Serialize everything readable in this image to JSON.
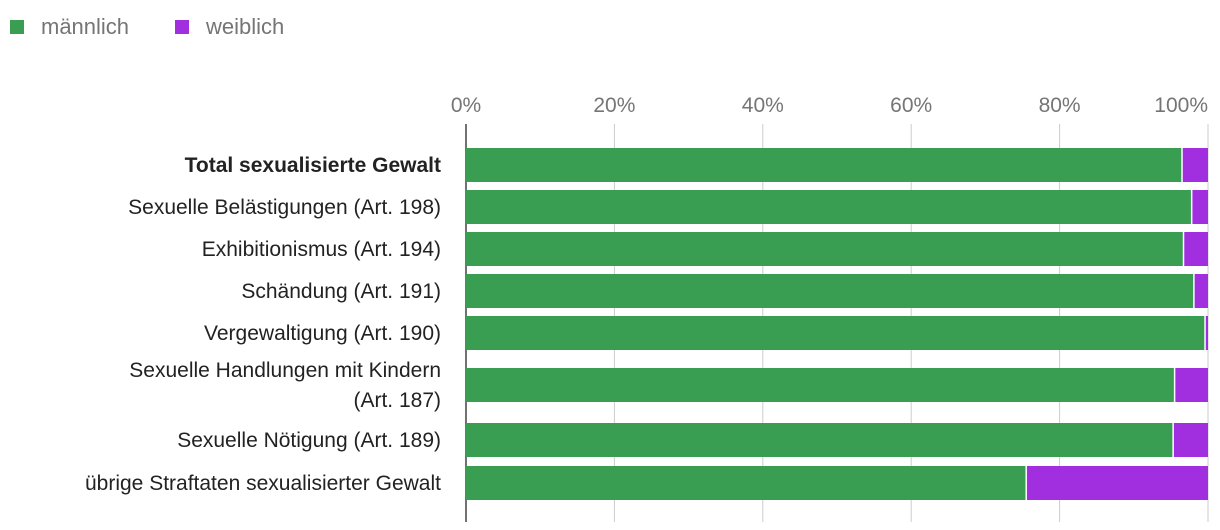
{
  "chart_data": {
    "type": "bar",
    "orientation": "horizontal",
    "stacked": true,
    "percent_stacked": true,
    "title": "",
    "xlabel": "",
    "ylabel": "",
    "xlim": [
      0,
      100
    ],
    "x_ticks": [
      0,
      20,
      40,
      60,
      80,
      100
    ],
    "x_tick_labels": [
      "0%",
      "20%",
      "40%",
      "60%",
      "80%",
      "100%"
    ],
    "grid": true,
    "legend_position": "top-left",
    "categories": [
      "Total sexualisierte Gewalt",
      "Sexuelle Belästigungen (Art. 198)",
      "Exhibitionismus (Art. 194)",
      "Schändung (Art. 191)",
      "Vergewaltigung (Art. 190)",
      "Sexuelle Handlungen mit Kindern (Art. 187)",
      "Sexuelle Nötigung (Art. 189)",
      "übrige Straftaten sexualisierter Gewalt"
    ],
    "category_lines": [
      [
        "Total sexualisierte Gewalt"
      ],
      [
        "Sexuelle Belästigungen (Art. 198)"
      ],
      [
        "Exhibitionismus (Art. 194)"
      ],
      [
        "Schändung (Art. 191)"
      ],
      [
        "Vergewaltigung (Art. 190)"
      ],
      [
        "Sexuelle Handlungen mit Kindern",
        "(Art. 187)"
      ],
      [
        "Sexuelle Nötigung (Art. 189)"
      ],
      [
        "übrige Straftaten sexualisierter Gewalt"
      ]
    ],
    "bold_categories": [
      0
    ],
    "series": [
      {
        "name": "männlich",
        "color": "#3a9e52",
        "values": [
          96.5,
          97.8,
          96.7,
          98.1,
          99.6,
          95.5,
          95.3,
          75.5
        ]
      },
      {
        "name": "weiblich",
        "color": "#a12fe0",
        "values": [
          3.5,
          2.2,
          3.3,
          1.9,
          0.4,
          4.5,
          4.7,
          24.5
        ]
      }
    ]
  }
}
